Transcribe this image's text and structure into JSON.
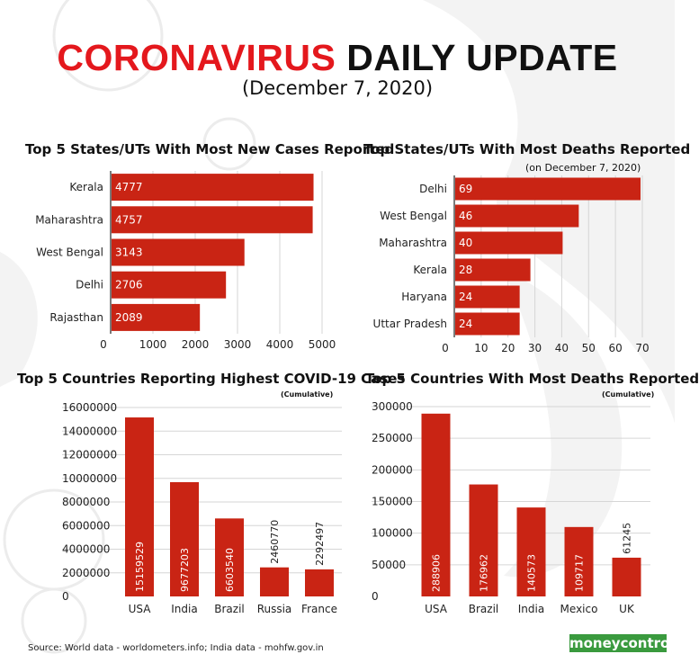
{
  "header": {
    "title_red": "CORONAVIRUS",
    "title_black": "DAILY UPDATE",
    "date": "(December 7, 2020)"
  },
  "colors": {
    "bar": "#c92414",
    "title_red": "#e4181d",
    "logo_green": "#3a9a3e"
  },
  "panels": {
    "states_cases": {
      "title": "Top 5 States/UTs With Most New Cases Reported"
    },
    "states_deaths": {
      "title": "Top States/UTs With Most Deaths Reported",
      "note": "(on December 7, 2020)"
    },
    "countries_cases": {
      "title": "Top 5 Countries Reporting Highest COVID-19 Cases",
      "note": "(Cumulative)"
    },
    "countries_deaths": {
      "title": "Top 5 Countries With Most Deaths Reported",
      "note": "(Cumulative)"
    }
  },
  "footer": {
    "source": "Source: World data - worldometers.info; India data - mohfw.gov.in",
    "brand": "moneycontrol"
  },
  "chart_data": [
    {
      "id": "states_cases",
      "type": "bar",
      "orientation": "horizontal",
      "title": "Top 5 States/UTs With Most New Cases Reported",
      "categories": [
        "Kerala",
        "Maharashtra",
        "West Bengal",
        "Delhi",
        "Rajasthan"
      ],
      "values": [
        4777,
        4757,
        3143,
        2706,
        2089
      ],
      "xlim": [
        0,
        5000
      ],
      "ticks": [
        0,
        1000,
        2000,
        3000,
        4000,
        5000
      ],
      "grid": true
    },
    {
      "id": "states_deaths",
      "type": "bar",
      "orientation": "horizontal",
      "title": "Top States/UTs With Most Deaths Reported",
      "categories": [
        "Delhi",
        "West Bengal",
        "Maharashtra",
        "Kerala",
        "Haryana",
        "Uttar Pradesh"
      ],
      "values": [
        69,
        46,
        40,
        28,
        24,
        24
      ],
      "xlim": [
        0,
        70
      ],
      "ticks": [
        0,
        10,
        20,
        30,
        40,
        50,
        60,
        70
      ],
      "grid": true
    },
    {
      "id": "countries_cases",
      "type": "bar",
      "orientation": "vertical",
      "title": "Top 5 Countries Reporting Highest COVID-19 Cases",
      "categories": [
        "USA",
        "India",
        "Brazil",
        "Russia",
        "France"
      ],
      "values": [
        15159529,
        9677203,
        6603540,
        2460770,
        2292497
      ],
      "ylim": [
        0,
        16000000
      ],
      "ticks": [
        0,
        2000000,
        4000000,
        6000000,
        8000000,
        10000000,
        12000000,
        14000000,
        16000000
      ],
      "grid": true
    },
    {
      "id": "countries_deaths",
      "type": "bar",
      "orientation": "vertical",
      "title": "Top 5 Countries With Most Deaths Reported",
      "categories": [
        "USA",
        "Brazil",
        "India",
        "Mexico",
        "UK"
      ],
      "values": [
        288906,
        176962,
        140573,
        109717,
        61245
      ],
      "ylim": [
        0,
        300000
      ],
      "ticks": [
        0,
        50000,
        100000,
        150000,
        200000,
        250000,
        300000
      ],
      "grid": true
    }
  ]
}
